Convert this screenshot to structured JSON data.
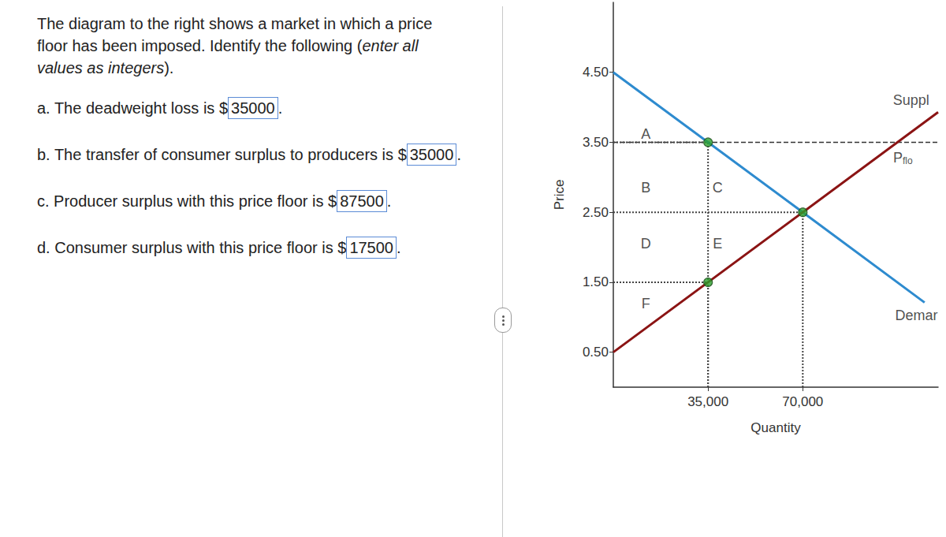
{
  "question": {
    "intro": [
      [
        {
          "text": "The diagram to the right shows a market in which a price",
          "italic": false
        }
      ],
      [
        {
          "text": "floor has been imposed. Identify the following (",
          "italic": false
        },
        {
          "text": "enter all",
          "italic": true
        }
      ],
      [
        {
          "text": "values as integers",
          "italic": true
        },
        {
          "text": ").",
          "italic": false
        }
      ]
    ],
    "currency": "$",
    "end": ".",
    "items": [
      {
        "text": "a. The deadweight loss is",
        "answer": 35000
      },
      {
        "text": "b. The transfer of consumer surplus to producers is",
        "answer": 35000
      },
      {
        "text": "c. Producer surplus with this price floor is",
        "answer": 87500
      },
      {
        "text": "d. Consumer surplus with this price floor is",
        "answer": 17500
      }
    ]
  },
  "chart_data": {
    "type": "line",
    "x_label": "Quantity",
    "y_label": "Price",
    "xlim": [
      0,
      120000
    ],
    "ylim": [
      0,
      5.5
    ],
    "xticks": [
      {
        "value": 35000,
        "label": "35,000"
      },
      {
        "value": 70000,
        "label": "70,000"
      }
    ],
    "yticks": [
      {
        "value": 0.5,
        "label": "0.50"
      },
      {
        "value": 1.5,
        "label": "1.50"
      },
      {
        "value": 2.5,
        "label": "2.50"
      },
      {
        "value": 3.5,
        "label": "3.50"
      },
      {
        "value": 4.5,
        "label": "4.50"
      }
    ],
    "grid": false,
    "series": [
      {
        "name": "Demar",
        "color": "#2e8bcf",
        "line_style": "solid",
        "x": [
          0,
          70000,
          115000
        ],
        "values": [
          4.5,
          2.5,
          1.21
        ]
      },
      {
        "name": "Suppl",
        "color": "#8b1414",
        "line_style": "solid",
        "x": [
          0,
          70000,
          120000
        ],
        "values": [
          0.5,
          2.5,
          3.93
        ]
      },
      {
        "name": "P",
        "color": "#333333",
        "line_style": "dashed",
        "x": [
          0,
          120000
        ],
        "values": [
          3.5,
          3.5
        ]
      }
    ],
    "points": {
      "color": "#2ca02c",
      "marker": "circle",
      "x": [
        35000,
        70000,
        35000
      ],
      "values": [
        3.5,
        2.5,
        1.5
      ]
    },
    "annotations": [
      {
        "text": "A",
        "x": 12000,
        "y": 3.62
      },
      {
        "text": "B",
        "x": 12000,
        "y": 2.85
      },
      {
        "text": "C",
        "x": 38500,
        "y": 2.85
      },
      {
        "text": "D",
        "x": 12000,
        "y": 2.05
      },
      {
        "text": "E",
        "x": 38500,
        "y": 2.05
      },
      {
        "text": "F",
        "x": 12000,
        "y": 1.2
      },
      {
        "text": "Suppl",
        "x": 110000,
        "y": 4.1
      },
      {
        "text": "Demar",
        "x": 112000,
        "y": 1.03
      },
      {
        "text": "P",
        "subscript": "flo",
        "x": 107000,
        "y": 3.28
      }
    ]
  }
}
